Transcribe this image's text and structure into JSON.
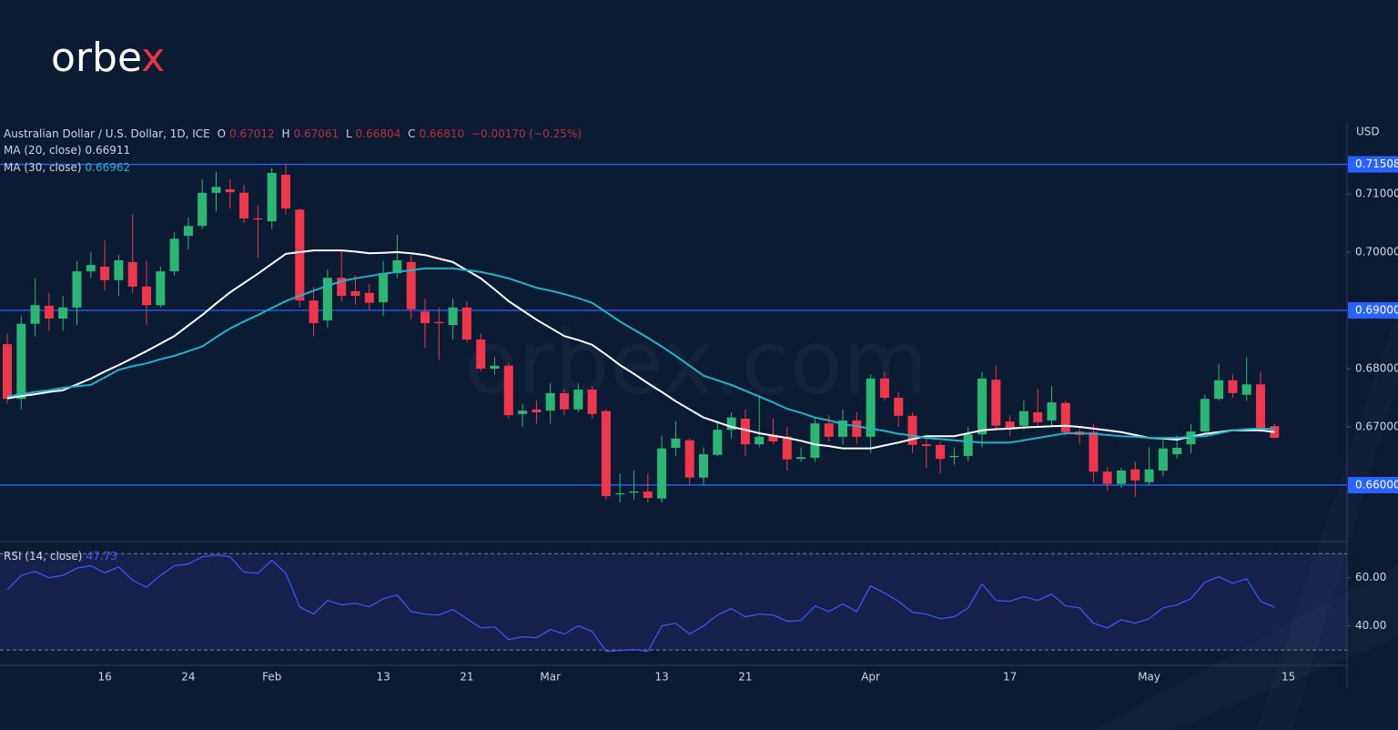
{
  "logo": "orbex",
  "watermark": "orbex.com",
  "chart_data": [
    {
      "type": "candlestick",
      "title": "Australian Dollar / U.S. Dollar, 1D, ICE",
      "legend": [
        {
          "key": "O",
          "value": "0.67012"
        },
        {
          "key": "H",
          "value": "0.67061"
        },
        {
          "key": "L",
          "value": "0.66804"
        },
        {
          "key": "C",
          "value": "0.66810"
        }
      ],
      "change": "−0.00170 (−0.25%)",
      "y_unit": "USD",
      "categories": [
        null,
        null,
        null,
        null,
        null,
        null,
        null,
        "16",
        null,
        null,
        null,
        null,
        null,
        "24",
        null,
        null,
        null,
        null,
        null,
        "Feb",
        null,
        null,
        null,
        null,
        null,
        null,
        null,
        "13",
        null,
        null,
        null,
        null,
        null,
        "21",
        null,
        null,
        null,
        null,
        null,
        "Mar",
        null,
        null,
        null,
        null,
        null,
        null,
        null,
        "13",
        null,
        null,
        null,
        null,
        null,
        "21",
        null,
        null,
        null,
        null,
        null,
        null,
        null,
        null,
        "Apr",
        null,
        null,
        null,
        null,
        null,
        null,
        null,
        null,
        null,
        "17",
        null,
        null,
        null,
        null,
        null,
        null,
        null,
        null,
        null,
        "May",
        null,
        null,
        null,
        null,
        null,
        null,
        null,
        null,
        null,
        "15"
      ],
      "open": [
        0.6842,
        0.6748,
        0.6877,
        0.6908,
        0.6886,
        0.6905,
        0.6967,
        0.6975,
        0.6952,
        0.6983,
        0.6941,
        0.6909,
        0.6967,
        0.7028,
        0.7045,
        0.7102,
        0.7108,
        0.7102,
        0.7058,
        0.7053,
        0.7133,
        0.7073,
        0.6917,
        0.6883,
        0.6956,
        0.6933,
        0.693,
        0.6914,
        0.6964,
        0.6983,
        0.6898,
        0.688,
        0.6875,
        0.6905,
        0.685,
        0.68,
        0.6805,
        0.6722,
        0.673,
        0.6728,
        0.6758,
        0.673,
        0.6764,
        0.6727,
        0.6584,
        0.6587,
        0.6589,
        0.6577,
        0.6664,
        0.6677,
        0.6613,
        0.6652,
        0.6695,
        0.6714,
        0.667,
        0.6686,
        0.6683,
        0.6645,
        0.6647,
        0.6706,
        0.6683,
        0.6711,
        0.6683,
        0.6783,
        0.675,
        0.6719,
        0.667,
        0.6669,
        0.6648,
        0.665,
        0.6687,
        0.6781,
        0.6709,
        0.6702,
        0.6725,
        0.6711,
        0.6741,
        0.6692,
        0.6691,
        0.6623,
        0.6602,
        0.6627,
        0.6605,
        0.6625,
        0.6653,
        0.667,
        0.6692,
        0.6748,
        0.678,
        0.6755,
        0.6773,
        0.67012,
        null
      ],
      "high": [
        0.686,
        0.689,
        0.6955,
        0.693,
        0.6925,
        0.6985,
        0.7,
        0.702,
        0.6995,
        0.7065,
        0.6985,
        0.6975,
        0.7035,
        0.706,
        0.7125,
        0.7138,
        0.7125,
        0.7115,
        0.708,
        0.7145,
        0.715,
        0.7075,
        0.694,
        0.697,
        0.7005,
        0.696,
        0.6945,
        0.6985,
        0.703,
        0.6995,
        0.692,
        0.6905,
        0.692,
        0.6915,
        0.686,
        0.682,
        0.681,
        0.674,
        0.6745,
        0.6775,
        0.6765,
        0.6775,
        0.677,
        0.673,
        0.662,
        0.6625,
        0.662,
        0.6685,
        0.671,
        0.668,
        0.6665,
        0.671,
        0.6725,
        0.673,
        0.6755,
        0.6715,
        0.67,
        0.6665,
        0.6715,
        0.672,
        0.673,
        0.6725,
        0.679,
        0.6795,
        0.676,
        0.6725,
        0.668,
        0.6675,
        0.6665,
        0.67,
        0.6795,
        0.6805,
        0.672,
        0.6745,
        0.6765,
        0.677,
        0.6745,
        0.67,
        0.6705,
        0.663,
        0.663,
        0.664,
        0.6665,
        0.668,
        0.6685,
        0.6705,
        0.6755,
        0.6808,
        0.679,
        0.682,
        0.6795,
        0.67061,
        null
      ],
      "low": [
        0.674,
        0.673,
        0.6855,
        0.6865,
        0.6865,
        0.6875,
        0.6955,
        0.6935,
        0.6925,
        0.693,
        0.6875,
        0.6905,
        0.696,
        0.7005,
        0.704,
        0.707,
        0.7075,
        0.705,
        0.699,
        0.704,
        0.7065,
        0.6905,
        0.6855,
        0.687,
        0.6915,
        0.691,
        0.69,
        0.689,
        0.6955,
        0.6885,
        0.6835,
        0.6815,
        0.685,
        0.6845,
        0.6795,
        0.679,
        0.6715,
        0.67,
        0.6705,
        0.6705,
        0.672,
        0.6725,
        0.6715,
        0.6575,
        0.657,
        0.6575,
        0.657,
        0.657,
        0.665,
        0.66,
        0.66,
        0.665,
        0.668,
        0.665,
        0.6665,
        0.667,
        0.6625,
        0.664,
        0.664,
        0.6675,
        0.667,
        0.667,
        0.6655,
        0.6745,
        0.67,
        0.6655,
        0.663,
        0.662,
        0.6635,
        0.664,
        0.6665,
        0.6695,
        0.6685,
        0.6695,
        0.67,
        0.67,
        0.6685,
        0.667,
        0.6605,
        0.659,
        0.6595,
        0.658,
        0.66,
        0.6615,
        0.6645,
        0.6655,
        0.669,
        0.6745,
        0.675,
        0.6745,
        0.669,
        0.66804,
        null
      ],
      "close": [
        0.6748,
        0.6877,
        0.6909,
        0.6886,
        0.6905,
        0.6967,
        0.6978,
        0.6952,
        0.6986,
        0.6941,
        0.6909,
        0.6967,
        0.7023,
        0.7045,
        0.7102,
        0.7112,
        0.7103,
        0.7058,
        0.7056,
        0.7136,
        0.7075,
        0.6917,
        0.6878,
        0.6956,
        0.6925,
        0.6925,
        0.6913,
        0.6964,
        0.6986,
        0.6902,
        0.6878,
        0.6878,
        0.6905,
        0.685,
        0.68,
        0.6805,
        0.672,
        0.6728,
        0.6725,
        0.6758,
        0.673,
        0.6764,
        0.6722,
        0.6581,
        0.6586,
        0.6589,
        0.6578,
        0.6663,
        0.668,
        0.6613,
        0.6653,
        0.6695,
        0.6716,
        0.667,
        0.6683,
        0.6675,
        0.6644,
        0.6648,
        0.6706,
        0.6683,
        0.6711,
        0.6683,
        0.6783,
        0.675,
        0.6719,
        0.6669,
        0.6667,
        0.6645,
        0.665,
        0.6687,
        0.6783,
        0.6702,
        0.6698,
        0.6727,
        0.6708,
        0.6742,
        0.6691,
        0.6686,
        0.6623,
        0.6602,
        0.6625,
        0.6608,
        0.6627,
        0.6663,
        0.6664,
        0.6692,
        0.6748,
        0.678,
        0.6758,
        0.6773,
        0.6698,
        0.6681,
        null
      ],
      "up_color": "#2bb673",
      "down_color": "#f0364a",
      "series": [
        {
          "name": "MA (20, close)",
          "last_label": "0.66911",
          "color": "#ffffff",
          "values": [
            0.6749,
            0.6753,
            0.6756,
            0.676,
            0.6763,
            0.6773,
            0.6783,
            0.6795,
            0.6806,
            0.6818,
            0.683,
            0.6843,
            0.6856,
            0.6874,
            0.6892,
            0.6912,
            0.6931,
            0.6947,
            0.6963,
            0.698,
            0.6997,
            0.7,
            0.7003,
            0.7003,
            0.7003,
            0.7001,
            0.6998,
            0.6999,
            0.7,
            0.6998,
            0.6995,
            0.6989,
            0.6983,
            0.6969,
            0.6955,
            0.6936,
            0.6916,
            0.69,
            0.6884,
            0.687,
            0.6856,
            0.6849,
            0.6841,
            0.6824,
            0.6806,
            0.6791,
            0.6775,
            0.676,
            0.6744,
            0.673,
            0.6716,
            0.6708,
            0.67,
            0.6695,
            0.6689,
            0.6685,
            0.6681,
            0.6676,
            0.667,
            0.6667,
            0.6663,
            0.6663,
            0.6663,
            0.6668,
            0.6673,
            0.6679,
            0.6684,
            0.6684,
            0.6684,
            0.6689,
            0.6694,
            0.6696,
            0.6697,
            0.6699,
            0.67,
            0.6701,
            0.6702,
            0.67,
            0.6697,
            0.6694,
            0.6691,
            0.6686,
            0.6681,
            0.668,
            0.6678,
            0.6683,
            0.6688,
            0.6691,
            0.6694,
            0.6694,
            0.6694,
            0.66911,
            null
          ]
        },
        {
          "name": "MA (30, close)",
          "last_label": "0.66962",
          "color": "#1fb5c9",
          "values": [
            0.6752,
            0.6756,
            0.676,
            0.6763,
            0.6767,
            0.677,
            0.6772,
            0.6785,
            0.6798,
            0.6804,
            0.6809,
            0.6816,
            0.6822,
            0.683,
            0.6838,
            0.6854,
            0.6869,
            0.6881,
            0.6892,
            0.6904,
            0.6916,
            0.6925,
            0.6934,
            0.6942,
            0.695,
            0.6955,
            0.6959,
            0.6963,
            0.6966,
            0.6969,
            0.6972,
            0.6972,
            0.6972,
            0.6969,
            0.6966,
            0.6961,
            0.6955,
            0.6947,
            0.6939,
            0.6934,
            0.6928,
            0.6921,
            0.6913,
            0.6897,
            0.6881,
            0.6867,
            0.6853,
            0.6838,
            0.6822,
            0.6805,
            0.6788,
            0.678,
            0.6772,
            0.6762,
            0.6752,
            0.6742,
            0.6731,
            0.6724,
            0.6716,
            0.6711,
            0.6705,
            0.6701,
            0.6697,
            0.6693,
            0.6688,
            0.6685,
            0.6681,
            0.6679,
            0.6677,
            0.6675,
            0.6673,
            0.6673,
            0.6673,
            0.6677,
            0.6681,
            0.6685,
            0.6689,
            0.6689,
            0.6688,
            0.6686,
            0.6684,
            0.6683,
            0.6681,
            0.6681,
            0.6681,
            0.6683,
            0.6684,
            0.6689,
            0.6694,
            0.6696,
            0.6697,
            0.66962,
            null
          ]
        }
      ],
      "ylim": [
        0.6503,
        0.7222
      ],
      "yticks": [
        {
          "value": 0.71,
          "label": "0.71000"
        },
        {
          "value": 0.7,
          "label": "0.70000"
        },
        {
          "value": 0.68,
          "label": "0.68000"
        },
        {
          "value": 0.67,
          "label": "0.67000"
        }
      ],
      "levels": [
        {
          "value": 0.71508,
          "label": "0.71508"
        },
        {
          "value": 0.69,
          "label": "0.69000"
        },
        {
          "value": 0.66,
          "label": "0.66000"
        }
      ],
      "level_color": "#2962ff"
    },
    {
      "type": "line",
      "series": [
        {
          "name": "RSI (14, close)",
          "last_label": "47.73",
          "color": "#3d5afe",
          "values": [
            55,
            61,
            62.6,
            60,
            61,
            64,
            65,
            62,
            64.5,
            59,
            56,
            61,
            65,
            65.7,
            68.7,
            69.4,
            68.7,
            62.3,
            61.9,
            67.2,
            61.9,
            47.9,
            44.9,
            50.6,
            48.7,
            49.4,
            47.9,
            51.3,
            52.8,
            46,
            44.9,
            44.5,
            46.8,
            43,
            39.2,
            39.6,
            34.3,
            35.5,
            35.1,
            38.5,
            36.6,
            40,
            37.7,
            29.4,
            29.8,
            30.2,
            29.4,
            40,
            41.1,
            36.6,
            40,
            44.5,
            47.2,
            43.8,
            44.9,
            44.5,
            41.9,
            42.3,
            48.3,
            46,
            49.1,
            46,
            56.6,
            53.6,
            50.2,
            45.7,
            44.9,
            43,
            43.8,
            47.5,
            57.4,
            50.6,
            50.2,
            52.1,
            50.6,
            53.2,
            48.3,
            47.5,
            41.1,
            39.2,
            42.6,
            41.1,
            43,
            47.5,
            48.7,
            51.3,
            58.1,
            60.4,
            57.7,
            59.6,
            50.2,
            47.73,
            null
          ]
        }
      ],
      "ylim": [
        24,
        75
      ],
      "yticks": [
        {
          "value": 60,
          "label": "60.00"
        },
        {
          "value": 40,
          "label": "40.00"
        }
      ],
      "levels": [
        30,
        70
      ]
    }
  ]
}
